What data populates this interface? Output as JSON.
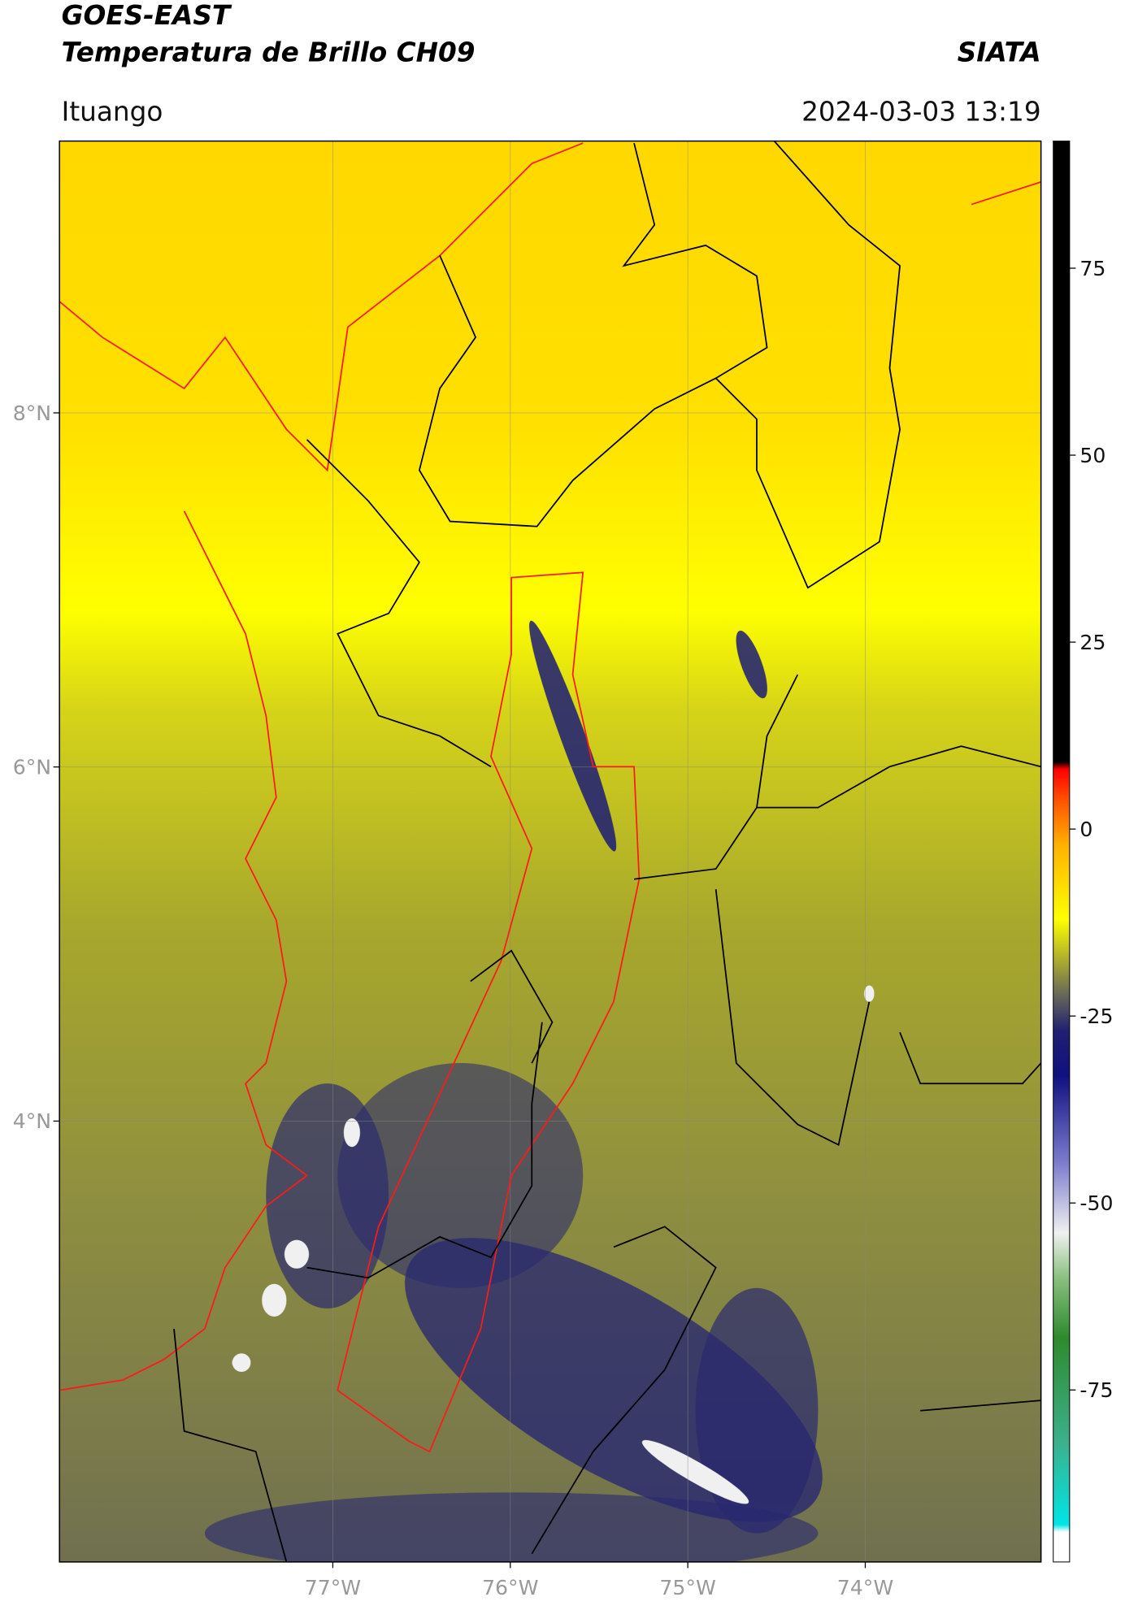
{
  "header": {
    "title_line1": "GOES-EAST",
    "title_line2": "Temperatura de Brillo CH09",
    "source": "SIATA",
    "location": "Ituango",
    "timestamp": "2024-03-03 13:19"
  },
  "map": {
    "lon_range": [
      -78.54,
      -73.01
    ],
    "lat_range": [
      1.51,
      9.535
    ],
    "lon_ticks": [
      {
        "value": -77,
        "label": "77°W"
      },
      {
        "value": -76,
        "label": "76°W"
      },
      {
        "value": -75,
        "label": "75°W"
      },
      {
        "value": -74,
        "label": "74°W"
      }
    ],
    "lat_ticks": [
      {
        "value": 8,
        "label": "8°N"
      },
      {
        "value": 6,
        "label": "6°N"
      },
      {
        "value": 4,
        "label": "4°N"
      }
    ],
    "grid": true
  },
  "colorbar": {
    "lim": [
      -98,
      92
    ],
    "ticks": [
      75,
      50,
      25,
      0,
      -25,
      -50,
      -75
    ],
    "stops": [
      {
        "value": -98,
        "color": "#ffffff"
      },
      {
        "value": -94,
        "color": "#ffffff"
      },
      {
        "value": -93,
        "color": "#00e5e5"
      },
      {
        "value": -82,
        "color": "#3cb08c"
      },
      {
        "value": -68,
        "color": "#2e8a2e"
      },
      {
        "value": -60,
        "color": "#8ac080"
      },
      {
        "value": -54,
        "color": "#f0f0f0"
      },
      {
        "value": -45,
        "color": "#8080d0"
      },
      {
        "value": -33,
        "color": "#101080"
      },
      {
        "value": -27,
        "color": "#202070"
      },
      {
        "value": -22,
        "color": "#6a6a58"
      },
      {
        "value": -17,
        "color": "#b4b42a"
      },
      {
        "value": -12,
        "color": "#ffff00"
      },
      {
        "value": -2,
        "color": "#ffb000"
      },
      {
        "value": 4,
        "color": "#ff5000"
      },
      {
        "value": 8,
        "color": "#ff0000"
      },
      {
        "value": 9,
        "color": "#000000"
      },
      {
        "value": 92,
        "color": "#000000"
      }
    ]
  }
}
